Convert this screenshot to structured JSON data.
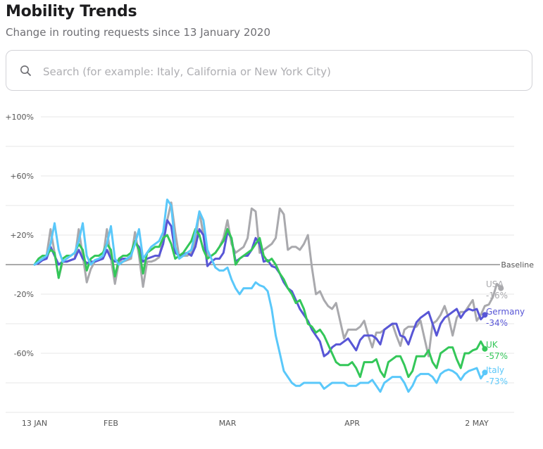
{
  "header": {
    "title": "Mobility Trends",
    "subtitle": "Change in routing requests since 13 January 2020"
  },
  "search": {
    "placeholder": "Search (for example: Italy, California or New York City)",
    "value": "",
    "icon": "search-icon"
  },
  "chart_data": {
    "type": "line",
    "title": "Mobility Trends",
    "subtitle": "Change in routing requests since 13 January 2020",
    "xlabel": "",
    "ylabel": "",
    "x_start": "13 JAN",
    "x_end": "2 MAY",
    "x_days": 111,
    "ylim": [
      -100,
      100
    ],
    "grid": true,
    "grid_values": [
      100,
      80,
      60,
      40,
      20,
      -20,
      -40,
      -60,
      -80,
      -100
    ],
    "y_ticks": [
      {
        "value": 100,
        "label": "+100%"
      },
      {
        "value": 60,
        "label": "+60%"
      },
      {
        "value": 20,
        "label": "+20%"
      },
      {
        "value": -20,
        "label": "-20%"
      },
      {
        "value": -60,
        "label": "-60%"
      }
    ],
    "x_ticks": [
      {
        "day": 0,
        "label": "13 JAN"
      },
      {
        "day": 19,
        "label": "FEB"
      },
      {
        "day": 48,
        "label": "MAR"
      },
      {
        "day": 79,
        "label": "APR"
      },
      {
        "day": 110,
        "label": "2 MAY"
      }
    ],
    "baseline": {
      "value": 0,
      "label": "Baseline"
    },
    "legend_placement": "right",
    "series": [
      {
        "name": "USA",
        "color": "#a9a9ad",
        "last_label": "-16%",
        "values": [
          0,
          2,
          4,
          6,
          24,
          8,
          -9,
          2,
          2,
          3,
          4,
          24,
          6,
          -12,
          -3,
          2,
          3,
          4,
          24,
          4,
          -13,
          2,
          2,
          3,
          4,
          22,
          6,
          -15,
          2,
          2,
          3,
          5,
          18,
          30,
          42,
          22,
          5,
          6,
          6,
          8,
          16,
          36,
          20,
          6,
          6,
          8,
          12,
          18,
          30,
          14,
          8,
          10,
          12,
          18,
          38,
          36,
          8,
          10,
          12,
          14,
          18,
          38,
          34,
          10,
          12,
          12,
          10,
          14,
          20,
          -2,
          -20,
          -18,
          -24,
          -28,
          -30,
          -26,
          -38,
          -50,
          -44,
          -44,
          -44,
          -42,
          -38,
          -48,
          -56,
          -46,
          -46,
          -44,
          -42,
          -40,
          -48,
          -55,
          -44,
          -42,
          -42,
          -42,
          -38,
          -50,
          -62,
          -40,
          -38,
          -34,
          -28,
          -36,
          -48,
          -36,
          -32,
          -32,
          -28,
          -24,
          -38,
          -34,
          -28,
          -27,
          -22,
          -13,
          -16
        ]
      },
      {
        "name": "Germany",
        "color": "#5856d6",
        "last_label": "-34%",
        "values": [
          0,
          1,
          3,
          4,
          12,
          6,
          0,
          2,
          2,
          3,
          4,
          10,
          4,
          1,
          2,
          2,
          3,
          4,
          10,
          4,
          2,
          3,
          4,
          4,
          6,
          15,
          12,
          2,
          4,
          5,
          6,
          6,
          14,
          30,
          26,
          8,
          6,
          7,
          8,
          6,
          12,
          24,
          20,
          -1,
          2,
          4,
          4,
          8,
          22,
          18,
          2,
          4,
          6,
          6,
          10,
          18,
          14,
          2,
          3,
          -1,
          -2,
          -6,
          -12,
          -16,
          -18,
          -24,
          -30,
          -34,
          -38,
          -44,
          -48,
          -52,
          -62,
          -60,
          -56,
          -54,
          -54,
          -52,
          -50,
          -54,
          -58,
          -51,
          -48,
          -48,
          -48,
          -50,
          -54,
          -44,
          -42,
          -40,
          -40,
          -48,
          -49,
          -54,
          -46,
          -39,
          -36,
          -34,
          -32,
          -40,
          -48,
          -40,
          -36,
          -34,
          -32,
          -30,
          -36,
          -32,
          -30,
          -31,
          -30,
          -37,
          -34
        ]
      },
      {
        "name": "UK",
        "color": "#34c759",
        "last_label": "-57%",
        "values": [
          0,
          4,
          6,
          6,
          10,
          8,
          -9,
          4,
          6,
          6,
          8,
          14,
          10,
          -4,
          4,
          6,
          6,
          8,
          14,
          10,
          -8,
          4,
          6,
          6,
          8,
          16,
          10,
          -6,
          8,
          10,
          12,
          12,
          18,
          20,
          14,
          4,
          6,
          8,
          12,
          16,
          24,
          20,
          10,
          4,
          6,
          8,
          12,
          16,
          24,
          18,
          0,
          4,
          6,
          8,
          10,
          14,
          18,
          6,
          2,
          4,
          0,
          -6,
          -10,
          -16,
          -20,
          -26,
          -24,
          -30,
          -40,
          -42,
          -46,
          -44,
          -48,
          -54,
          -60,
          -66,
          -68,
          -68,
          -68,
          -66,
          -70,
          -76,
          -66,
          -66,
          -66,
          -64,
          -72,
          -76,
          -66,
          -64,
          -62,
          -62,
          -68,
          -76,
          -72,
          -62,
          -62,
          -62,
          -58,
          -66,
          -70,
          -60,
          -58,
          -56,
          -56,
          -64,
          -70,
          -60,
          -60,
          -58,
          -57,
          -52,
          -57
        ]
      },
      {
        "name": "Italy",
        "color": "#5ac8fa",
        "last_label": "-73%",
        "values": [
          0,
          2,
          4,
          6,
          14,
          28,
          10,
          2,
          4,
          6,
          8,
          16,
          28,
          6,
          0,
          3,
          4,
          6,
          14,
          26,
          4,
          0,
          2,
          4,
          6,
          14,
          24,
          4,
          8,
          12,
          14,
          16,
          22,
          44,
          40,
          12,
          4,
          6,
          8,
          10,
          22,
          36,
          30,
          10,
          4,
          -2,
          -4,
          -4,
          -2,
          -10,
          -16,
          -20,
          -16,
          -16,
          -16,
          -12,
          -14,
          -15,
          -18,
          -30,
          -48,
          -60,
          -72,
          -76,
          -80,
          -82,
          -82,
          -80,
          -80,
          -80,
          -80,
          -80,
          -84,
          -82,
          -80,
          -80,
          -80,
          -80,
          -82,
          -82,
          -82,
          -80,
          -80,
          -80,
          -78,
          -82,
          -86,
          -80,
          -78,
          -76,
          -76,
          -76,
          -80,
          -86,
          -82,
          -76,
          -74,
          -74,
          -74,
          -76,
          -80,
          -74,
          -72,
          -71,
          -72,
          -74,
          -78,
          -74,
          -72,
          -71,
          -70,
          -77,
          -73
        ]
      }
    ]
  }
}
